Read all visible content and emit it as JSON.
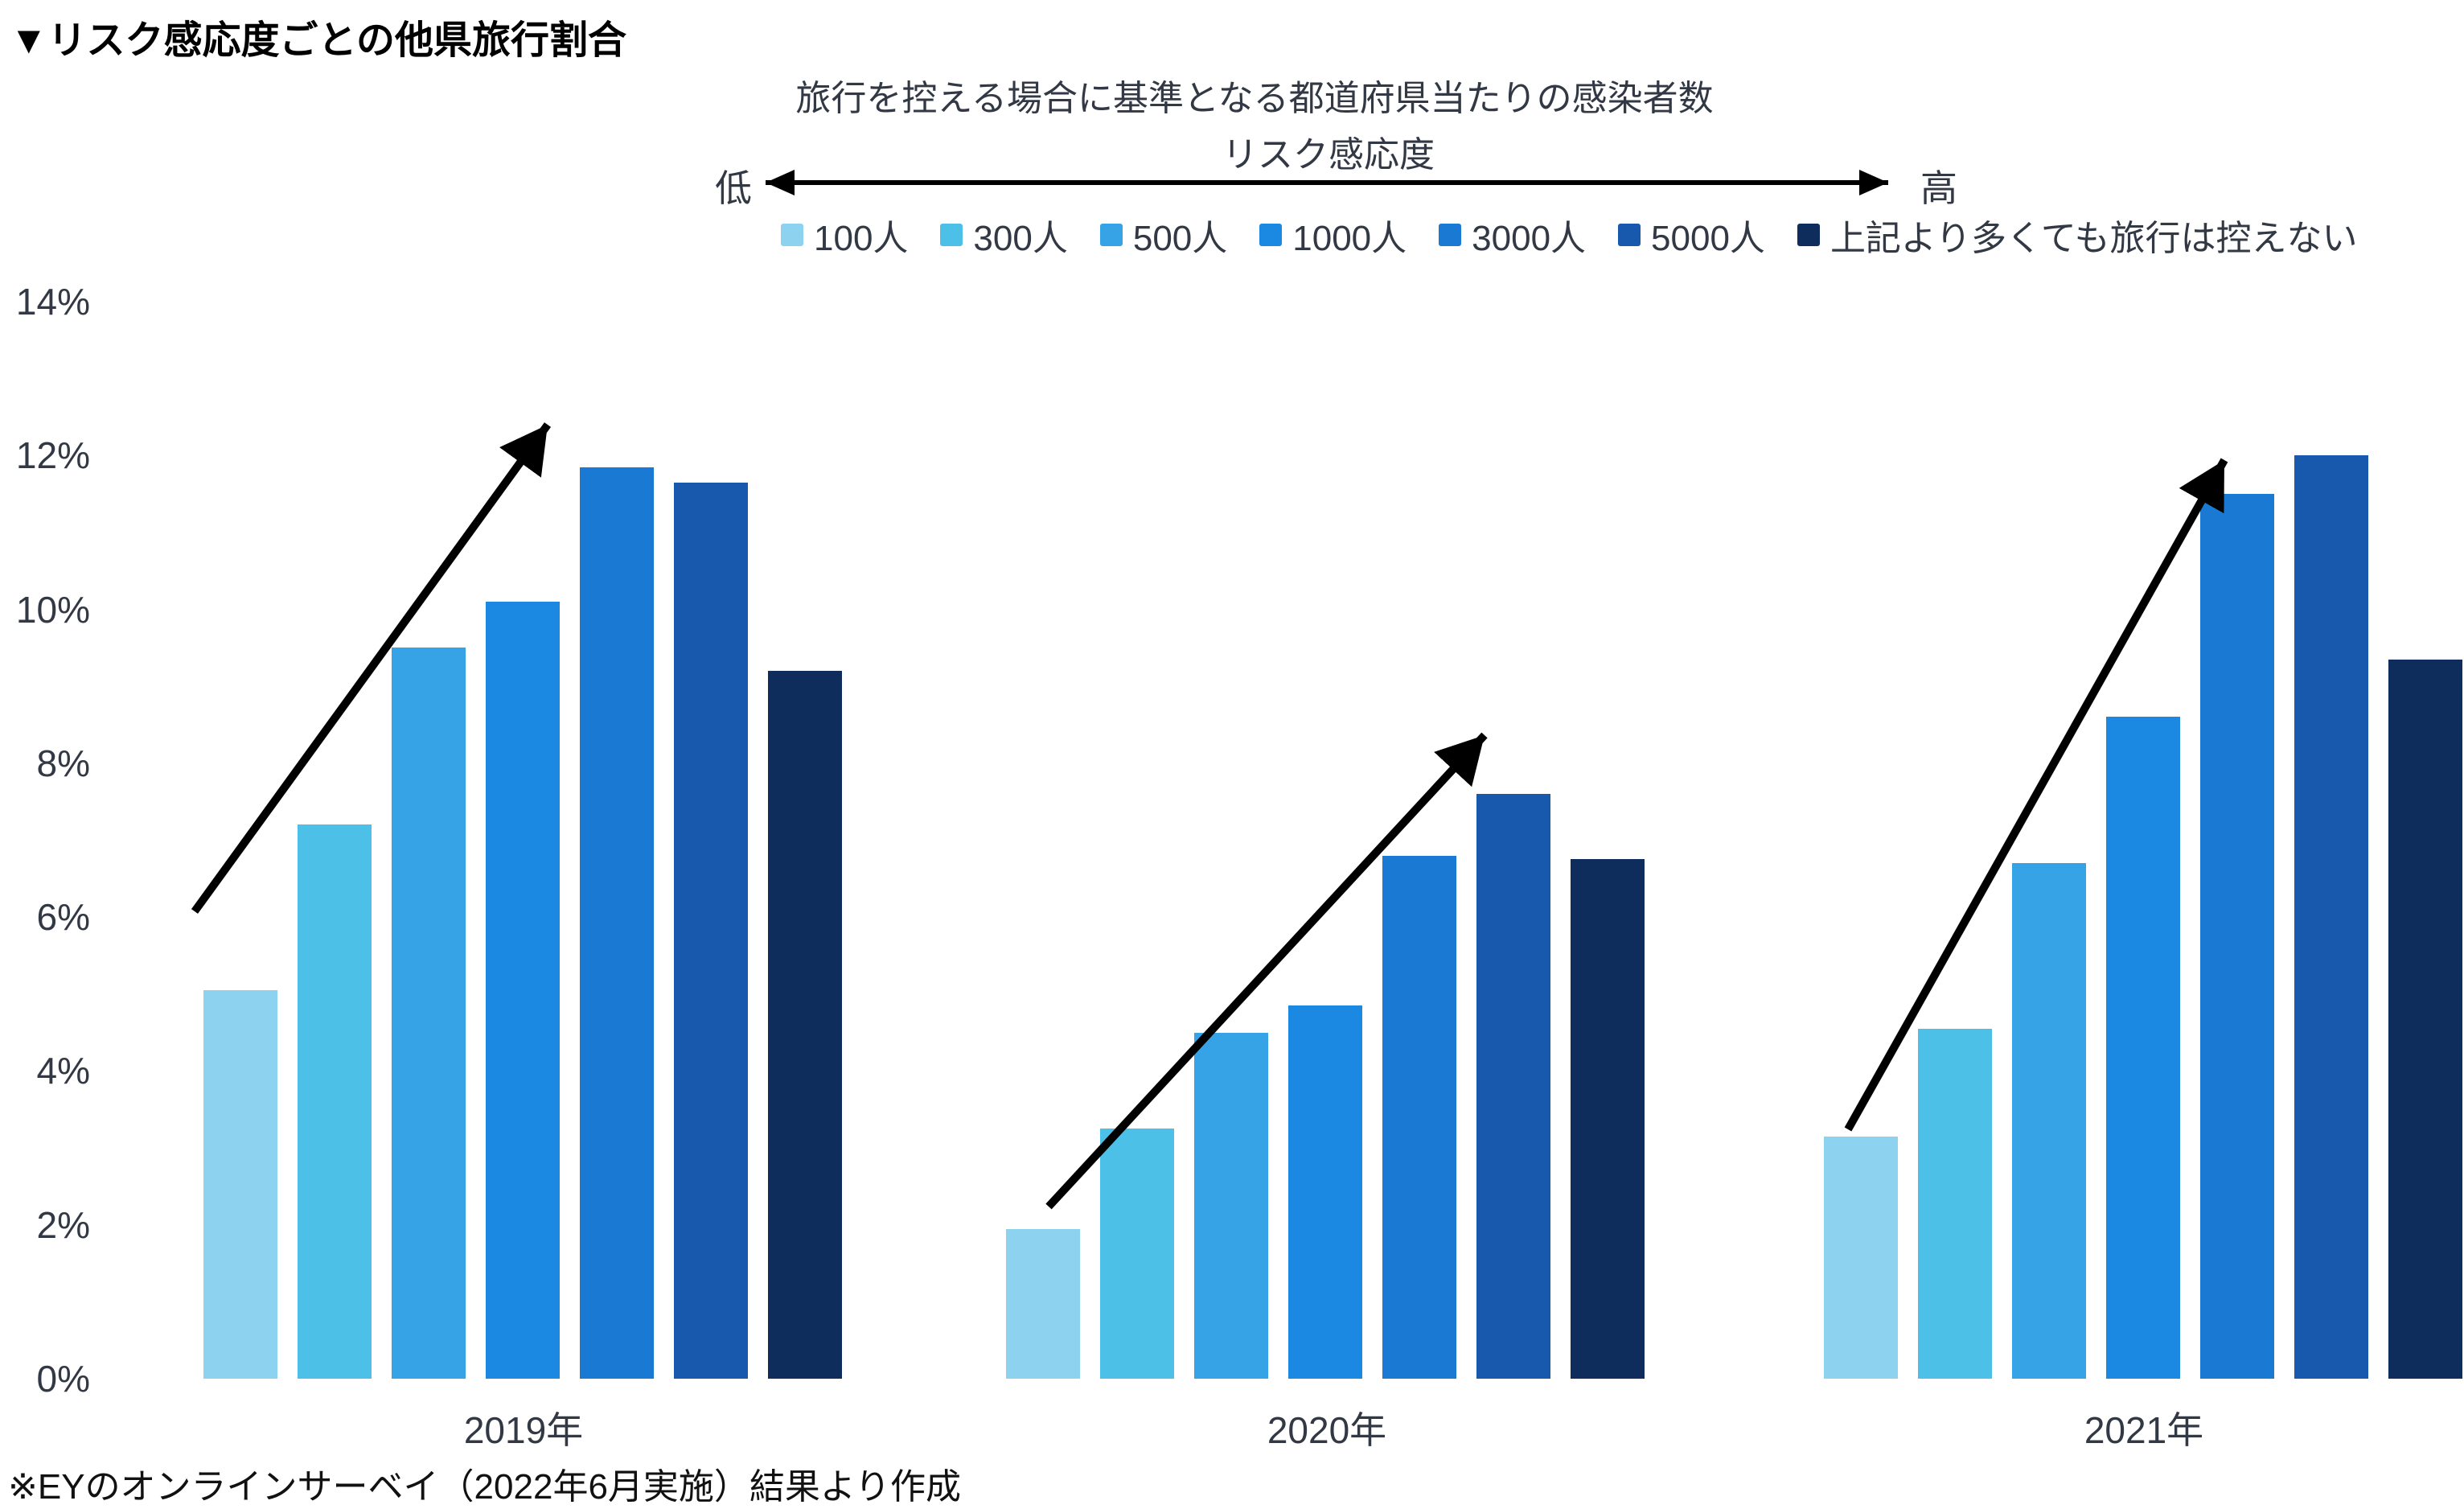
{
  "title": "▼リスク感応度ごとの他県旅行割合",
  "header": {
    "subtitle": "旅行を控える場合に基準となる都道府県当たりの感染者数",
    "risk_axis_label": "リスク感応度",
    "low_label": "低",
    "high_label": "高"
  },
  "footnote": "※EYのオンラインサーベイ（2022年6月実施）結果より作成",
  "colors": {
    "text_dark": "#323945",
    "title_text": "#000000",
    "arrow_black": "#000000",
    "background": "#ffffff"
  },
  "chart_data": {
    "type": "bar",
    "title": "リスク感応度ごとの他県旅行割合",
    "subtitle": "旅行を控える場合に基準となる都道府県当たりの感染者数",
    "categories": [
      "2019年",
      "2020年",
      "2021年"
    ],
    "series": [
      {
        "name": "100人",
        "color": "#8DD3F0",
        "values": [
          5.05,
          1.95,
          3.15
        ]
      },
      {
        "name": "300人",
        "color": "#4DC0E8",
        "values": [
          7.2,
          3.25,
          4.55
        ]
      },
      {
        "name": "500人",
        "color": "#36A3E6",
        "values": [
          9.5,
          4.5,
          6.7
        ]
      },
      {
        "name": "1000人",
        "color": "#1B88E2",
        "values": [
          10.1,
          4.85,
          8.6
        ]
      },
      {
        "name": "3000人",
        "color": "#1979D3",
        "values": [
          11.85,
          6.8,
          11.5
        ]
      },
      {
        "name": "5000人",
        "color": "#1859AE",
        "values": [
          11.65,
          7.6,
          12.0
        ]
      },
      {
        "name": "上記より多くても旅行は控えない",
        "color": "#0E2C5C",
        "values": [
          9.2,
          6.75,
          9.35
        ]
      }
    ],
    "ylabel": "%",
    "ylim": [
      0,
      14
    ],
    "ytick_step": 2,
    "ytick_labels": [
      "0%",
      "2%",
      "4%",
      "6%",
      "8%",
      "10%",
      "12%",
      "14%"
    ],
    "grid": false,
    "legend_position": "top",
    "annotations": [
      "upward trend arrow over 2019年 group",
      "upward trend arrow over 2020年 group",
      "upward trend arrow over 2021年 group",
      "horizontal double arrow 低→高 labelled リスク感応度"
    ]
  }
}
